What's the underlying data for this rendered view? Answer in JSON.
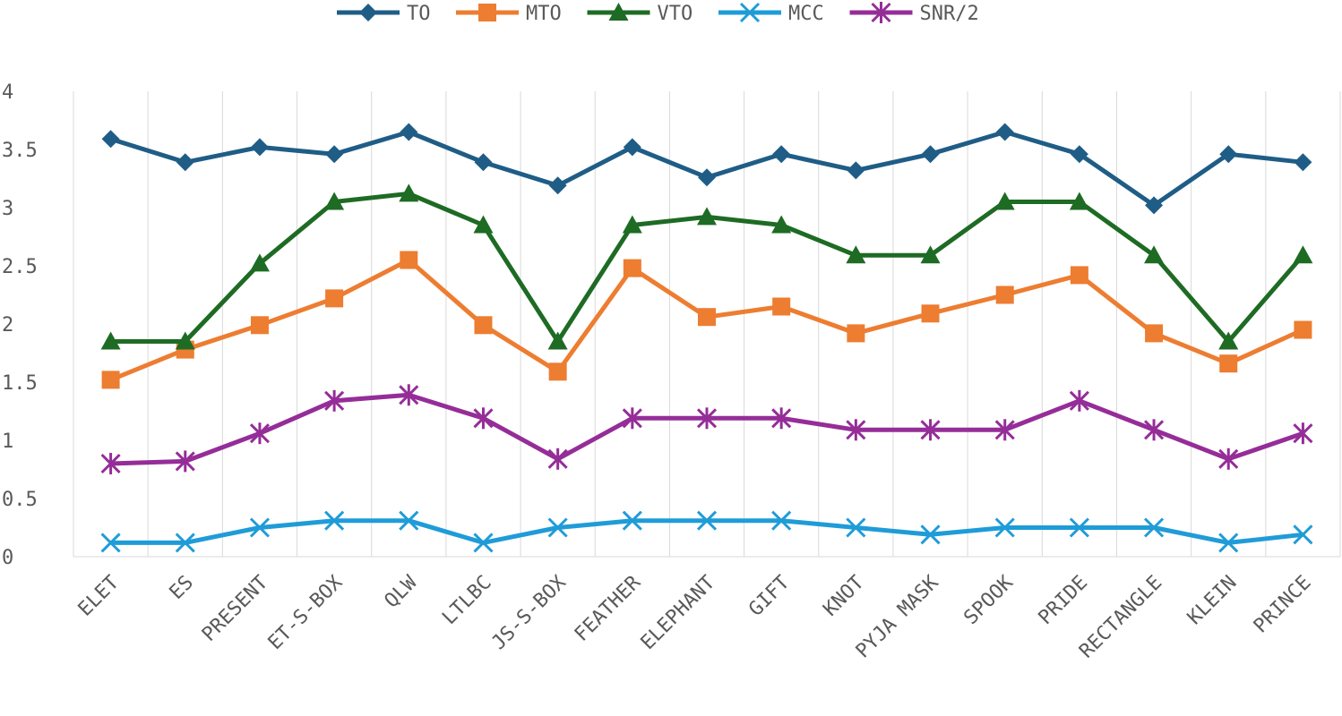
{
  "chart_data": {
    "type": "line",
    "title": "",
    "xlabel": "",
    "ylabel": "",
    "ylim": [
      0,
      4
    ],
    "yticks": [
      0,
      0.5,
      1,
      1.5,
      2,
      2.5,
      3,
      3.5,
      4
    ],
    "ytick_labels": [
      "0",
      "0.5",
      "1",
      "1.5",
      "2",
      "2.5",
      "3",
      "3.5",
      "4"
    ],
    "grid": "vertical",
    "legend_position": "top-center",
    "categories": [
      "ELET",
      "ES",
      "PRESENT",
      "ET-S-BOX",
      "QLW",
      "LTLBC",
      "JS-S-BOX",
      "FEATHER",
      "ELEPHANT",
      "GIFT",
      "KNOT",
      "PYJA MASK",
      "SPOOK",
      "PRIDE",
      "RECTANGLE",
      "KLEIN",
      "PRINCE"
    ],
    "series": [
      {
        "name": "TO",
        "color": "#1F5D86",
        "marker": "diamond",
        "values": [
          3.59,
          3.39,
          3.52,
          3.46,
          3.65,
          3.39,
          3.19,
          3.52,
          3.26,
          3.46,
          3.32,
          3.46,
          3.65,
          3.46,
          3.02,
          3.46,
          3.39
        ]
      },
      {
        "name": "MTO",
        "color": "#ED7D31",
        "marker": "square",
        "values": [
          1.52,
          1.78,
          1.99,
          2.22,
          2.55,
          1.99,
          1.59,
          2.48,
          2.06,
          2.15,
          1.92,
          2.09,
          2.25,
          2.42,
          1.92,
          1.66,
          1.95
        ]
      },
      {
        "name": "VTO",
        "color": "#1E6B24",
        "marker": "triangle",
        "values": [
          1.85,
          1.85,
          2.52,
          3.05,
          3.12,
          2.85,
          1.85,
          2.85,
          2.92,
          2.85,
          2.59,
          2.59,
          3.05,
          3.05,
          2.59,
          1.85,
          2.59
        ]
      },
      {
        "name": "MCC",
        "color": "#1F9CD8",
        "marker": "x",
        "values": [
          0.12,
          0.12,
          0.25,
          0.31,
          0.31,
          0.12,
          0.25,
          0.31,
          0.31,
          0.31,
          0.25,
          0.19,
          0.25,
          0.25,
          0.25,
          0.12,
          0.19
        ]
      },
      {
        "name": "SNR/2",
        "color": "#952D98",
        "marker": "star",
        "values": [
          0.8,
          0.82,
          1.06,
          1.34,
          1.39,
          1.19,
          0.84,
          1.19,
          1.19,
          1.19,
          1.09,
          1.09,
          1.09,
          1.34,
          1.09,
          0.84,
          1.06
        ]
      }
    ]
  }
}
